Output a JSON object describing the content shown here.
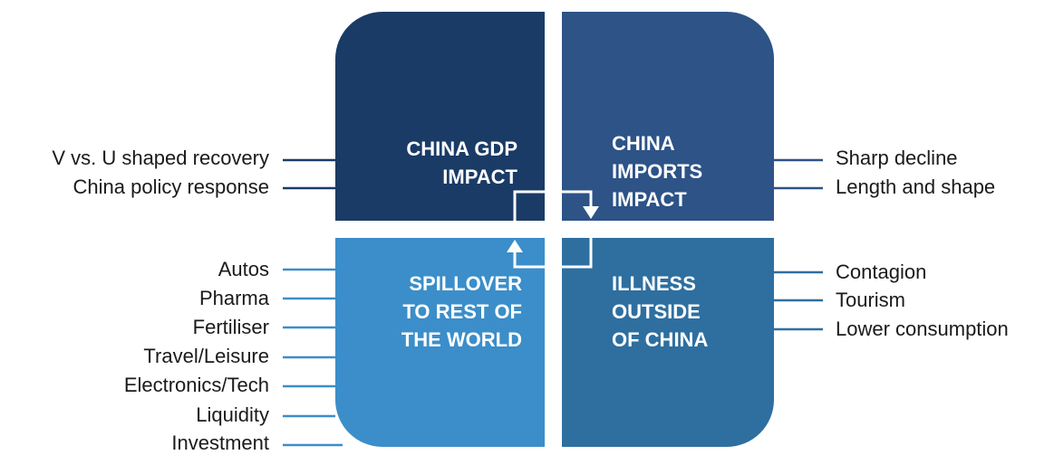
{
  "quadrants": {
    "q1": {
      "title": [
        "CHINA GDP",
        "IMPACT"
      ]
    },
    "q2": {
      "title": [
        "CHINA",
        "IMPORTS",
        "IMPACT"
      ]
    },
    "q3": {
      "title": [
        "SPILLOVER",
        "TO REST OF",
        "THE WORLD"
      ]
    },
    "q4": {
      "title": [
        "ILLNESS",
        "OUTSIDE",
        "OF CHINA"
      ]
    }
  },
  "labels": {
    "gdp": [
      "V vs. U shaped recovery",
      "China policy response"
    ],
    "imports": [
      "Sharp decline",
      "Length and shape"
    ],
    "spillover": [
      "Autos",
      "Pharma",
      "Fertiliser",
      "Travel/Leisure",
      "Electronics/Tech",
      "Liquidity",
      "Investment"
    ],
    "illness": [
      "Contagion",
      "Tourism",
      "Lower consumption"
    ]
  },
  "colors": {
    "gdp": "#1a3b66",
    "imports": "#2d5387",
    "spillover": "#3b8ec9",
    "illness": "#2e6fa0"
  }
}
